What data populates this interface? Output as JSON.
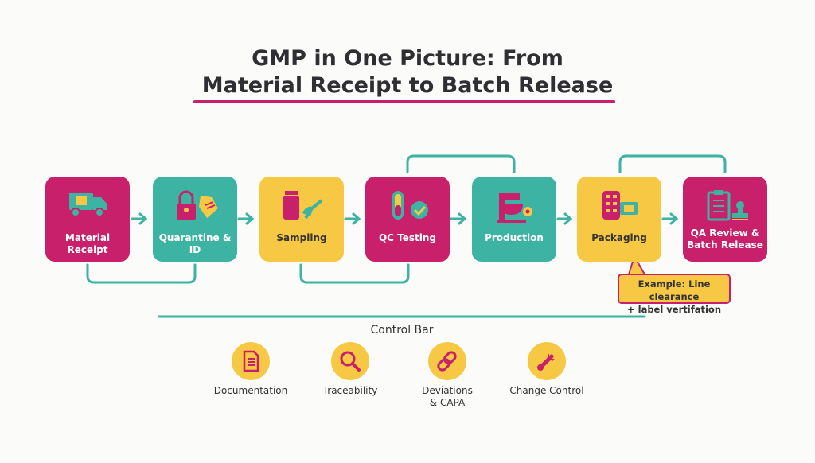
{
  "title": {
    "line1": "GMP in One Picture: From",
    "line2": "Material Receipt to Batch Release"
  },
  "colors": {
    "magenta": "#c8206a",
    "teal": "#3db3a3",
    "yellow": "#f6c843"
  },
  "steps": [
    {
      "label": "Material Receipt",
      "icon": "truck-icon",
      "color": "magenta"
    },
    {
      "label": "Quarantine & ID",
      "icon": "lock-tag-icon",
      "color": "teal"
    },
    {
      "label": "Sampling",
      "icon": "vial-scoop-icon",
      "color": "yellow"
    },
    {
      "label": "QC Testing",
      "icon": "test-tube-check-icon",
      "color": "magenta"
    },
    {
      "label": "Production",
      "icon": "mixer-icon",
      "color": "teal"
    },
    {
      "label": "Packaging",
      "icon": "blister-pack-icon",
      "color": "yellow"
    },
    {
      "line1": "QA Review &",
      "line2": "Batch Release",
      "icon": "clipboard-stamp-icon",
      "color": "magenta"
    }
  ],
  "callout": {
    "line1": "Example: Line clearance",
    "line2": "+ label vertifation"
  },
  "control_bar": {
    "title": "Control Bar",
    "items": [
      {
        "label": "Documentation",
        "icon": "document-icon"
      },
      {
        "label": "Traceability",
        "icon": "magnifier-icon"
      },
      {
        "line1": "Deviations",
        "line2": "& CAPA",
        "icon": "chain-link-icon"
      },
      {
        "label": "Change Control",
        "icon": "wrench-icon"
      }
    ]
  }
}
